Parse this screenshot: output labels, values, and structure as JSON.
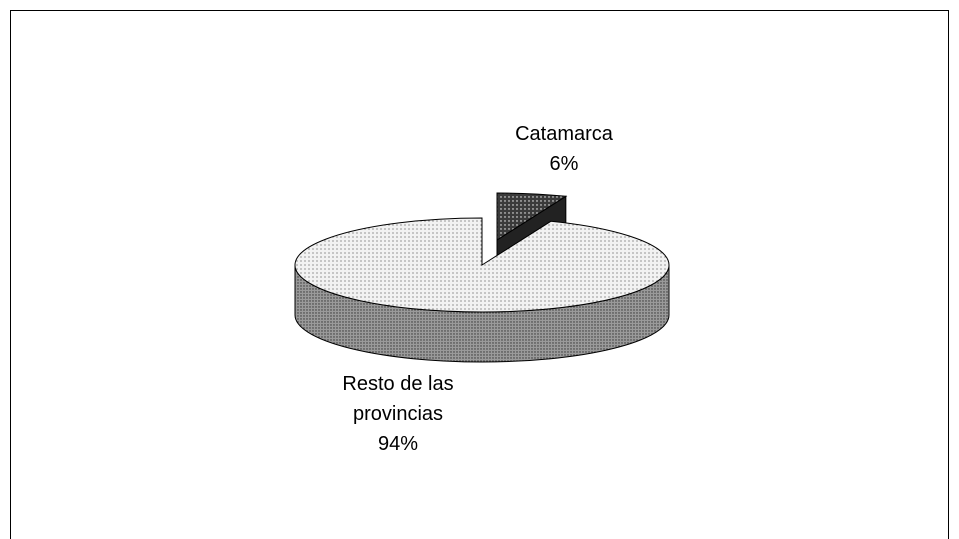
{
  "chart_data": {
    "type": "pie3d",
    "categories": [
      "Catamarca",
      "Resto de las provincias"
    ],
    "values": [
      6,
      94
    ],
    "value_labels": [
      "6%",
      "94%"
    ],
    "colors": [
      "#3a3a3a",
      "#f2f2f2"
    ]
  }
}
